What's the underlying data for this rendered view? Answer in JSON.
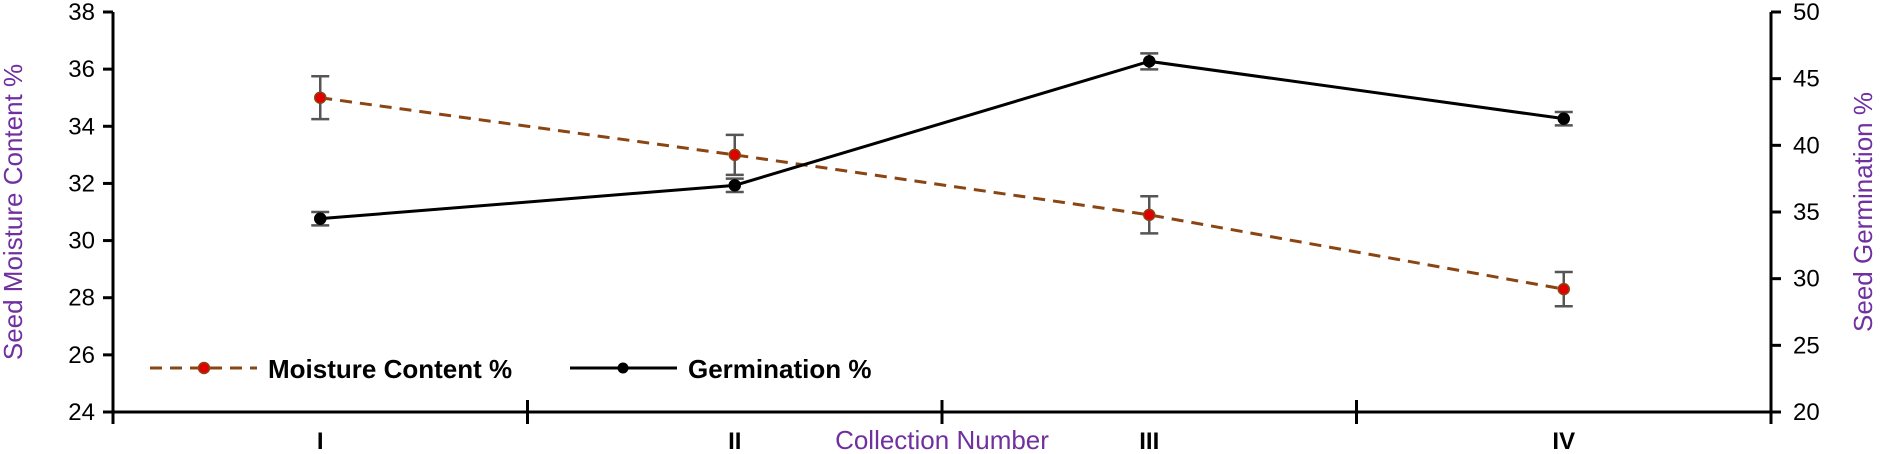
{
  "chart_data": {
    "type": "line",
    "categories": [
      "I",
      "II",
      "III",
      "IV"
    ],
    "xlabel": "Collection Number",
    "ylabel_left": "Seed Moisture Content %",
    "ylabel_right": "Seed Germination %",
    "ylim_left": [
      24,
      38
    ],
    "yticks_left": [
      24,
      26,
      28,
      30,
      32,
      34,
      36,
      38
    ],
    "ylim_right": [
      20,
      50
    ],
    "yticks_right": [
      20,
      25,
      30,
      35,
      40,
      45,
      50
    ],
    "grid": false,
    "legend_position": "bottom-left",
    "series": [
      {
        "name": "Moisture Content %",
        "axis": "left",
        "style": "dashed",
        "line_color": "#8B4513",
        "marker_color": "#E00000",
        "values": [
          35.0,
          33.0,
          30.9,
          28.3
        ],
        "error": [
          0.75,
          0.7,
          0.65,
          0.6
        ]
      },
      {
        "name": "Germination %",
        "axis": "right",
        "style": "solid",
        "line_color": "#000000",
        "marker_color": "#000000",
        "values": [
          34.5,
          37.0,
          46.3,
          42.0
        ],
        "error": [
          0.5,
          0.5,
          0.6,
          0.5
        ]
      }
    ],
    "colors": {
      "axis_title": "#7030A0",
      "error_bar": "#555555"
    }
  }
}
